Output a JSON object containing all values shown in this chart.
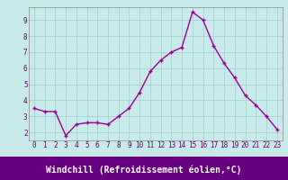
{
  "x": [
    0,
    1,
    2,
    3,
    4,
    5,
    6,
    7,
    8,
    9,
    10,
    11,
    12,
    13,
    14,
    15,
    16,
    17,
    18,
    19,
    20,
    21,
    22,
    23
  ],
  "y": [
    3.5,
    3.3,
    3.3,
    1.8,
    2.5,
    2.6,
    2.6,
    2.5,
    3.0,
    3.5,
    4.5,
    5.8,
    6.5,
    7.0,
    7.3,
    9.5,
    9.0,
    7.4,
    6.3,
    5.4,
    4.3,
    3.7,
    3.0,
    2.2
  ],
  "line_color": "#990099",
  "marker": "+",
  "bg_color": "#c8eaea",
  "axis_bg_color": "#c8eaea",
  "bottom_bar_color": "#660080",
  "grid_color": "#a0cccc",
  "xlabel": "Windchill (Refroidissement éolien,°C)",
  "xlim": [
    -0.5,
    23.5
  ],
  "ylim": [
    1.5,
    9.8
  ],
  "yticks": [
    2,
    3,
    4,
    5,
    6,
    7,
    8,
    9
  ],
  "xticks": [
    0,
    1,
    2,
    3,
    4,
    5,
    6,
    7,
    8,
    9,
    10,
    11,
    12,
    13,
    14,
    15,
    16,
    17,
    18,
    19,
    20,
    21,
    22,
    23
  ],
  "tick_label_color": "#660066",
  "tick_label_fontsize": 5.5,
  "xlabel_fontsize": 7.0,
  "spine_color": "#888888",
  "line_width": 1.0,
  "marker_size": 3,
  "marker_edge_width": 1.0
}
